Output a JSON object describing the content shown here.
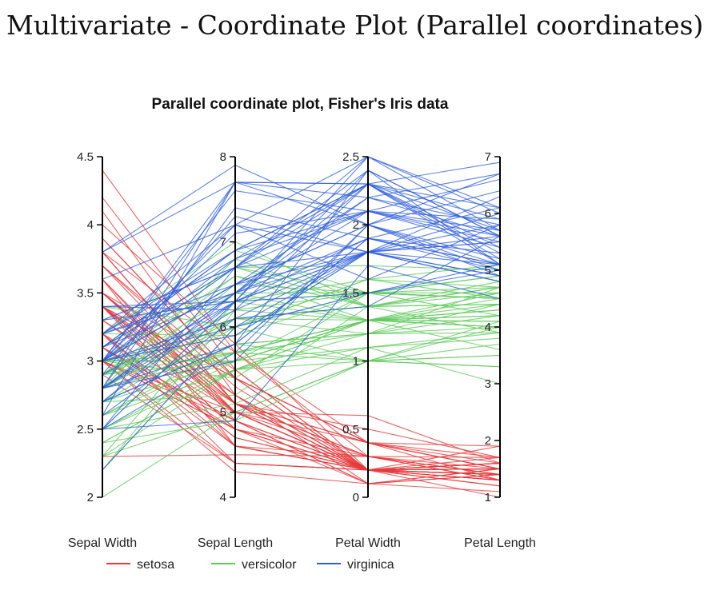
{
  "page": {
    "title": "Multivariate - Coordinate Plot (Parallel coordinates)"
  },
  "chart_data": {
    "type": "parallel-coordinates",
    "title": "Parallel coordinate plot, Fisher's Iris data",
    "dimensions": [
      {
        "name": "Sepal Width",
        "min": 2,
        "max": 4.5,
        "ticks": [
          2,
          2.5,
          3,
          3.5,
          4,
          4.5
        ],
        "tick_labels": [
          "2",
          "2.5",
          "3",
          "3.5",
          "4",
          "4.5"
        ]
      },
      {
        "name": "Sepal Length",
        "min": 4,
        "max": 8,
        "ticks": [
          4,
          5,
          6,
          7,
          8
        ],
        "tick_labels": [
          "4",
          "5",
          "6",
          "7",
          "8"
        ]
      },
      {
        "name": "Petal Width",
        "min": 0,
        "max": 2.5,
        "ticks": [
          0,
          0.5,
          1,
          1.5,
          2,
          2.5
        ],
        "tick_labels": [
          "0",
          "0.5",
          "1",
          "1.5",
          "2",
          "2.5"
        ]
      },
      {
        "name": "Petal Length",
        "min": 1,
        "max": 7,
        "ticks": [
          1,
          2,
          3,
          4,
          5,
          6,
          7
        ],
        "tick_labels": [
          "1",
          "2",
          "3",
          "4",
          "5",
          "6",
          "7"
        ]
      }
    ],
    "legend": [
      {
        "name": "setosa",
        "color": "#e8383b"
      },
      {
        "name": "versicolor",
        "color": "#5ec95a"
      },
      {
        "name": "virginica",
        "color": "#2f5fe0"
      }
    ],
    "legend_position": "bottom",
    "series": [
      {
        "name": "setosa",
        "color": "#e8383b",
        "rows": [
          [
            3.5,
            5.1,
            0.2,
            1.4
          ],
          [
            3.0,
            4.9,
            0.2,
            1.4
          ],
          [
            3.2,
            4.7,
            0.2,
            1.3
          ],
          [
            3.1,
            4.6,
            0.2,
            1.5
          ],
          [
            3.6,
            5.0,
            0.2,
            1.4
          ],
          [
            3.9,
            5.4,
            0.4,
            1.7
          ],
          [
            3.4,
            4.6,
            0.3,
            1.4
          ],
          [
            3.4,
            5.0,
            0.2,
            1.5
          ],
          [
            2.9,
            4.4,
            0.2,
            1.4
          ],
          [
            3.1,
            4.9,
            0.1,
            1.5
          ],
          [
            3.7,
            5.4,
            0.2,
            1.5
          ],
          [
            3.4,
            4.8,
            0.2,
            1.6
          ],
          [
            3.0,
            4.8,
            0.1,
            1.4
          ],
          [
            3.0,
            4.3,
            0.1,
            1.1
          ],
          [
            4.0,
            5.8,
            0.2,
            1.2
          ],
          [
            4.4,
            5.7,
            0.4,
            1.5
          ],
          [
            3.9,
            5.4,
            0.4,
            1.3
          ],
          [
            3.5,
            5.1,
            0.3,
            1.4
          ],
          [
            3.8,
            5.7,
            0.3,
            1.7
          ],
          [
            3.8,
            5.1,
            0.3,
            1.5
          ],
          [
            3.4,
            5.4,
            0.2,
            1.7
          ],
          [
            3.7,
            5.1,
            0.4,
            1.5
          ],
          [
            3.6,
            4.6,
            0.2,
            1.0
          ],
          [
            3.3,
            5.1,
            0.5,
            1.7
          ],
          [
            3.4,
            4.8,
            0.2,
            1.9
          ],
          [
            3.0,
            5.0,
            0.2,
            1.6
          ],
          [
            3.4,
            5.0,
            0.4,
            1.6
          ],
          [
            3.5,
            5.2,
            0.2,
            1.5
          ],
          [
            3.4,
            5.2,
            0.2,
            1.4
          ],
          [
            3.2,
            4.7,
            0.2,
            1.6
          ],
          [
            3.1,
            4.8,
            0.2,
            1.6
          ],
          [
            3.4,
            5.4,
            0.4,
            1.5
          ],
          [
            4.1,
            5.2,
            0.1,
            1.5
          ],
          [
            4.2,
            5.5,
            0.2,
            1.4
          ],
          [
            3.1,
            4.9,
            0.2,
            1.5
          ],
          [
            3.2,
            5.0,
            0.2,
            1.2
          ],
          [
            3.5,
            5.5,
            0.2,
            1.3
          ],
          [
            3.6,
            4.9,
            0.1,
            1.4
          ],
          [
            3.0,
            4.4,
            0.2,
            1.3
          ],
          [
            3.4,
            5.1,
            0.2,
            1.5
          ],
          [
            3.5,
            5.0,
            0.3,
            1.3
          ],
          [
            2.3,
            4.5,
            0.3,
            1.3
          ],
          [
            3.2,
            4.4,
            0.2,
            1.3
          ],
          [
            3.5,
            5.0,
            0.6,
            1.6
          ],
          [
            3.8,
            5.1,
            0.4,
            1.9
          ],
          [
            3.0,
            4.8,
            0.3,
            1.4
          ],
          [
            3.8,
            5.1,
            0.2,
            1.6
          ],
          [
            3.2,
            4.6,
            0.2,
            1.4
          ],
          [
            3.7,
            5.3,
            0.2,
            1.5
          ],
          [
            3.3,
            5.0,
            0.2,
            1.4
          ]
        ]
      },
      {
        "name": "versicolor",
        "color": "#5ec95a",
        "rows": [
          [
            3.2,
            7.0,
            1.4,
            4.7
          ],
          [
            3.2,
            6.4,
            1.5,
            4.5
          ],
          [
            3.1,
            6.9,
            1.5,
            4.9
          ],
          [
            2.3,
            5.5,
            1.3,
            4.0
          ],
          [
            2.8,
            6.5,
            1.5,
            4.6
          ],
          [
            2.8,
            5.7,
            1.3,
            4.5
          ],
          [
            3.3,
            6.3,
            1.6,
            4.7
          ],
          [
            2.4,
            4.9,
            1.0,
            3.3
          ],
          [
            2.9,
            6.6,
            1.3,
            4.6
          ],
          [
            2.7,
            5.2,
            1.4,
            3.9
          ],
          [
            2.0,
            5.0,
            1.0,
            3.5
          ],
          [
            3.0,
            5.9,
            1.5,
            4.2
          ],
          [
            2.2,
            6.0,
            1.0,
            4.0
          ],
          [
            2.9,
            6.1,
            1.4,
            4.7
          ],
          [
            2.9,
            5.6,
            1.3,
            3.6
          ],
          [
            3.1,
            6.7,
            1.4,
            4.4
          ],
          [
            3.0,
            5.6,
            1.5,
            4.5
          ],
          [
            2.7,
            5.8,
            1.0,
            4.1
          ],
          [
            2.2,
            6.2,
            1.5,
            4.5
          ],
          [
            2.5,
            5.6,
            1.1,
            3.9
          ],
          [
            3.2,
            5.9,
            1.8,
            4.8
          ],
          [
            2.8,
            6.1,
            1.3,
            4.0
          ],
          [
            2.5,
            6.3,
            1.5,
            4.9
          ],
          [
            2.8,
            6.1,
            1.2,
            4.7
          ],
          [
            2.9,
            6.4,
            1.3,
            4.3
          ],
          [
            3.0,
            6.6,
            1.4,
            4.4
          ],
          [
            2.8,
            6.8,
            1.4,
            4.8
          ],
          [
            3.0,
            6.7,
            1.7,
            5.0
          ],
          [
            2.9,
            6.0,
            1.5,
            4.5
          ],
          [
            2.6,
            5.7,
            1.0,
            3.5
          ],
          [
            2.4,
            5.5,
            1.1,
            3.8
          ],
          [
            2.4,
            5.5,
            1.0,
            3.7
          ],
          [
            2.7,
            5.8,
            1.2,
            3.9
          ],
          [
            2.7,
            6.0,
            1.6,
            5.1
          ],
          [
            3.0,
            5.4,
            1.5,
            4.5
          ],
          [
            3.4,
            6.0,
            1.6,
            4.5
          ],
          [
            3.1,
            6.7,
            1.5,
            4.7
          ],
          [
            2.3,
            6.3,
            1.3,
            4.4
          ],
          [
            3.0,
            5.6,
            1.3,
            4.1
          ],
          [
            2.5,
            5.5,
            1.3,
            4.0
          ],
          [
            2.6,
            5.5,
            1.2,
            4.4
          ],
          [
            3.0,
            6.1,
            1.4,
            4.6
          ],
          [
            2.6,
            5.8,
            1.2,
            4.0
          ],
          [
            2.3,
            5.0,
            1.0,
            3.3
          ],
          [
            2.7,
            5.6,
            1.3,
            4.2
          ],
          [
            3.0,
            5.7,
            1.2,
            4.2
          ],
          [
            2.9,
            5.7,
            1.3,
            4.2
          ],
          [
            2.9,
            6.2,
            1.3,
            4.3
          ],
          [
            2.5,
            5.1,
            1.1,
            3.0
          ],
          [
            2.8,
            5.7,
            1.3,
            4.1
          ]
        ]
      },
      {
        "name": "virginica",
        "color": "#2f5fe0",
        "rows": [
          [
            3.3,
            6.3,
            2.5,
            6.0
          ],
          [
            2.7,
            5.8,
            1.9,
            5.1
          ],
          [
            3.0,
            7.1,
            2.1,
            5.9
          ],
          [
            2.9,
            6.3,
            1.8,
            5.6
          ],
          [
            3.0,
            6.5,
            2.2,
            5.8
          ],
          [
            3.0,
            7.6,
            2.1,
            6.6
          ],
          [
            2.5,
            4.9,
            1.7,
            4.5
          ],
          [
            2.9,
            7.3,
            1.8,
            6.3
          ],
          [
            2.5,
            6.7,
            1.8,
            5.8
          ],
          [
            3.6,
            7.2,
            2.5,
            6.1
          ],
          [
            3.2,
            6.5,
            2.0,
            5.1
          ],
          [
            2.7,
            6.4,
            1.9,
            5.3
          ],
          [
            3.0,
            6.8,
            2.1,
            5.5
          ],
          [
            2.5,
            5.7,
            2.0,
            5.0
          ],
          [
            2.8,
            5.8,
            2.4,
            5.1
          ],
          [
            3.2,
            6.4,
            2.3,
            5.3
          ],
          [
            3.0,
            6.5,
            1.8,
            5.5
          ],
          [
            3.8,
            7.7,
            2.2,
            6.7
          ],
          [
            2.6,
            7.7,
            2.3,
            6.9
          ],
          [
            2.2,
            6.0,
            1.5,
            5.0
          ],
          [
            3.2,
            6.9,
            2.3,
            5.7
          ],
          [
            2.8,
            5.6,
            2.0,
            4.9
          ],
          [
            2.8,
            7.7,
            2.0,
            6.7
          ],
          [
            2.7,
            6.3,
            1.8,
            4.9
          ],
          [
            3.3,
            6.7,
            2.1,
            5.7
          ],
          [
            3.2,
            7.2,
            1.8,
            6.0
          ],
          [
            2.8,
            6.2,
            1.8,
            4.8
          ],
          [
            3.0,
            6.1,
            1.8,
            4.9
          ],
          [
            2.8,
            6.4,
            2.1,
            5.6
          ],
          [
            3.0,
            7.2,
            1.6,
            5.8
          ],
          [
            2.8,
            7.4,
            1.9,
            6.1
          ],
          [
            3.8,
            7.9,
            2.0,
            6.4
          ],
          [
            2.8,
            6.4,
            2.2,
            5.6
          ],
          [
            2.8,
            6.3,
            1.5,
            5.1
          ],
          [
            2.6,
            6.1,
            1.4,
            5.6
          ],
          [
            3.0,
            7.7,
            2.3,
            6.1
          ],
          [
            3.4,
            6.3,
            2.4,
            5.6
          ],
          [
            3.1,
            6.4,
            1.8,
            5.5
          ],
          [
            3.0,
            6.0,
            1.8,
            4.8
          ],
          [
            3.1,
            6.9,
            2.1,
            5.4
          ],
          [
            3.1,
            6.7,
            2.4,
            5.6
          ],
          [
            3.1,
            6.9,
            2.3,
            5.1
          ],
          [
            2.7,
            5.8,
            1.9,
            5.1
          ],
          [
            3.2,
            6.8,
            2.3,
            5.9
          ],
          [
            3.3,
            6.7,
            2.5,
            5.7
          ],
          [
            3.0,
            6.7,
            2.3,
            5.2
          ],
          [
            2.5,
            6.3,
            1.9,
            5.0
          ],
          [
            3.0,
            6.5,
            2.0,
            5.2
          ],
          [
            3.4,
            6.2,
            2.3,
            5.4
          ],
          [
            3.0,
            5.9,
            1.8,
            5.1
          ]
        ]
      }
    ]
  }
}
